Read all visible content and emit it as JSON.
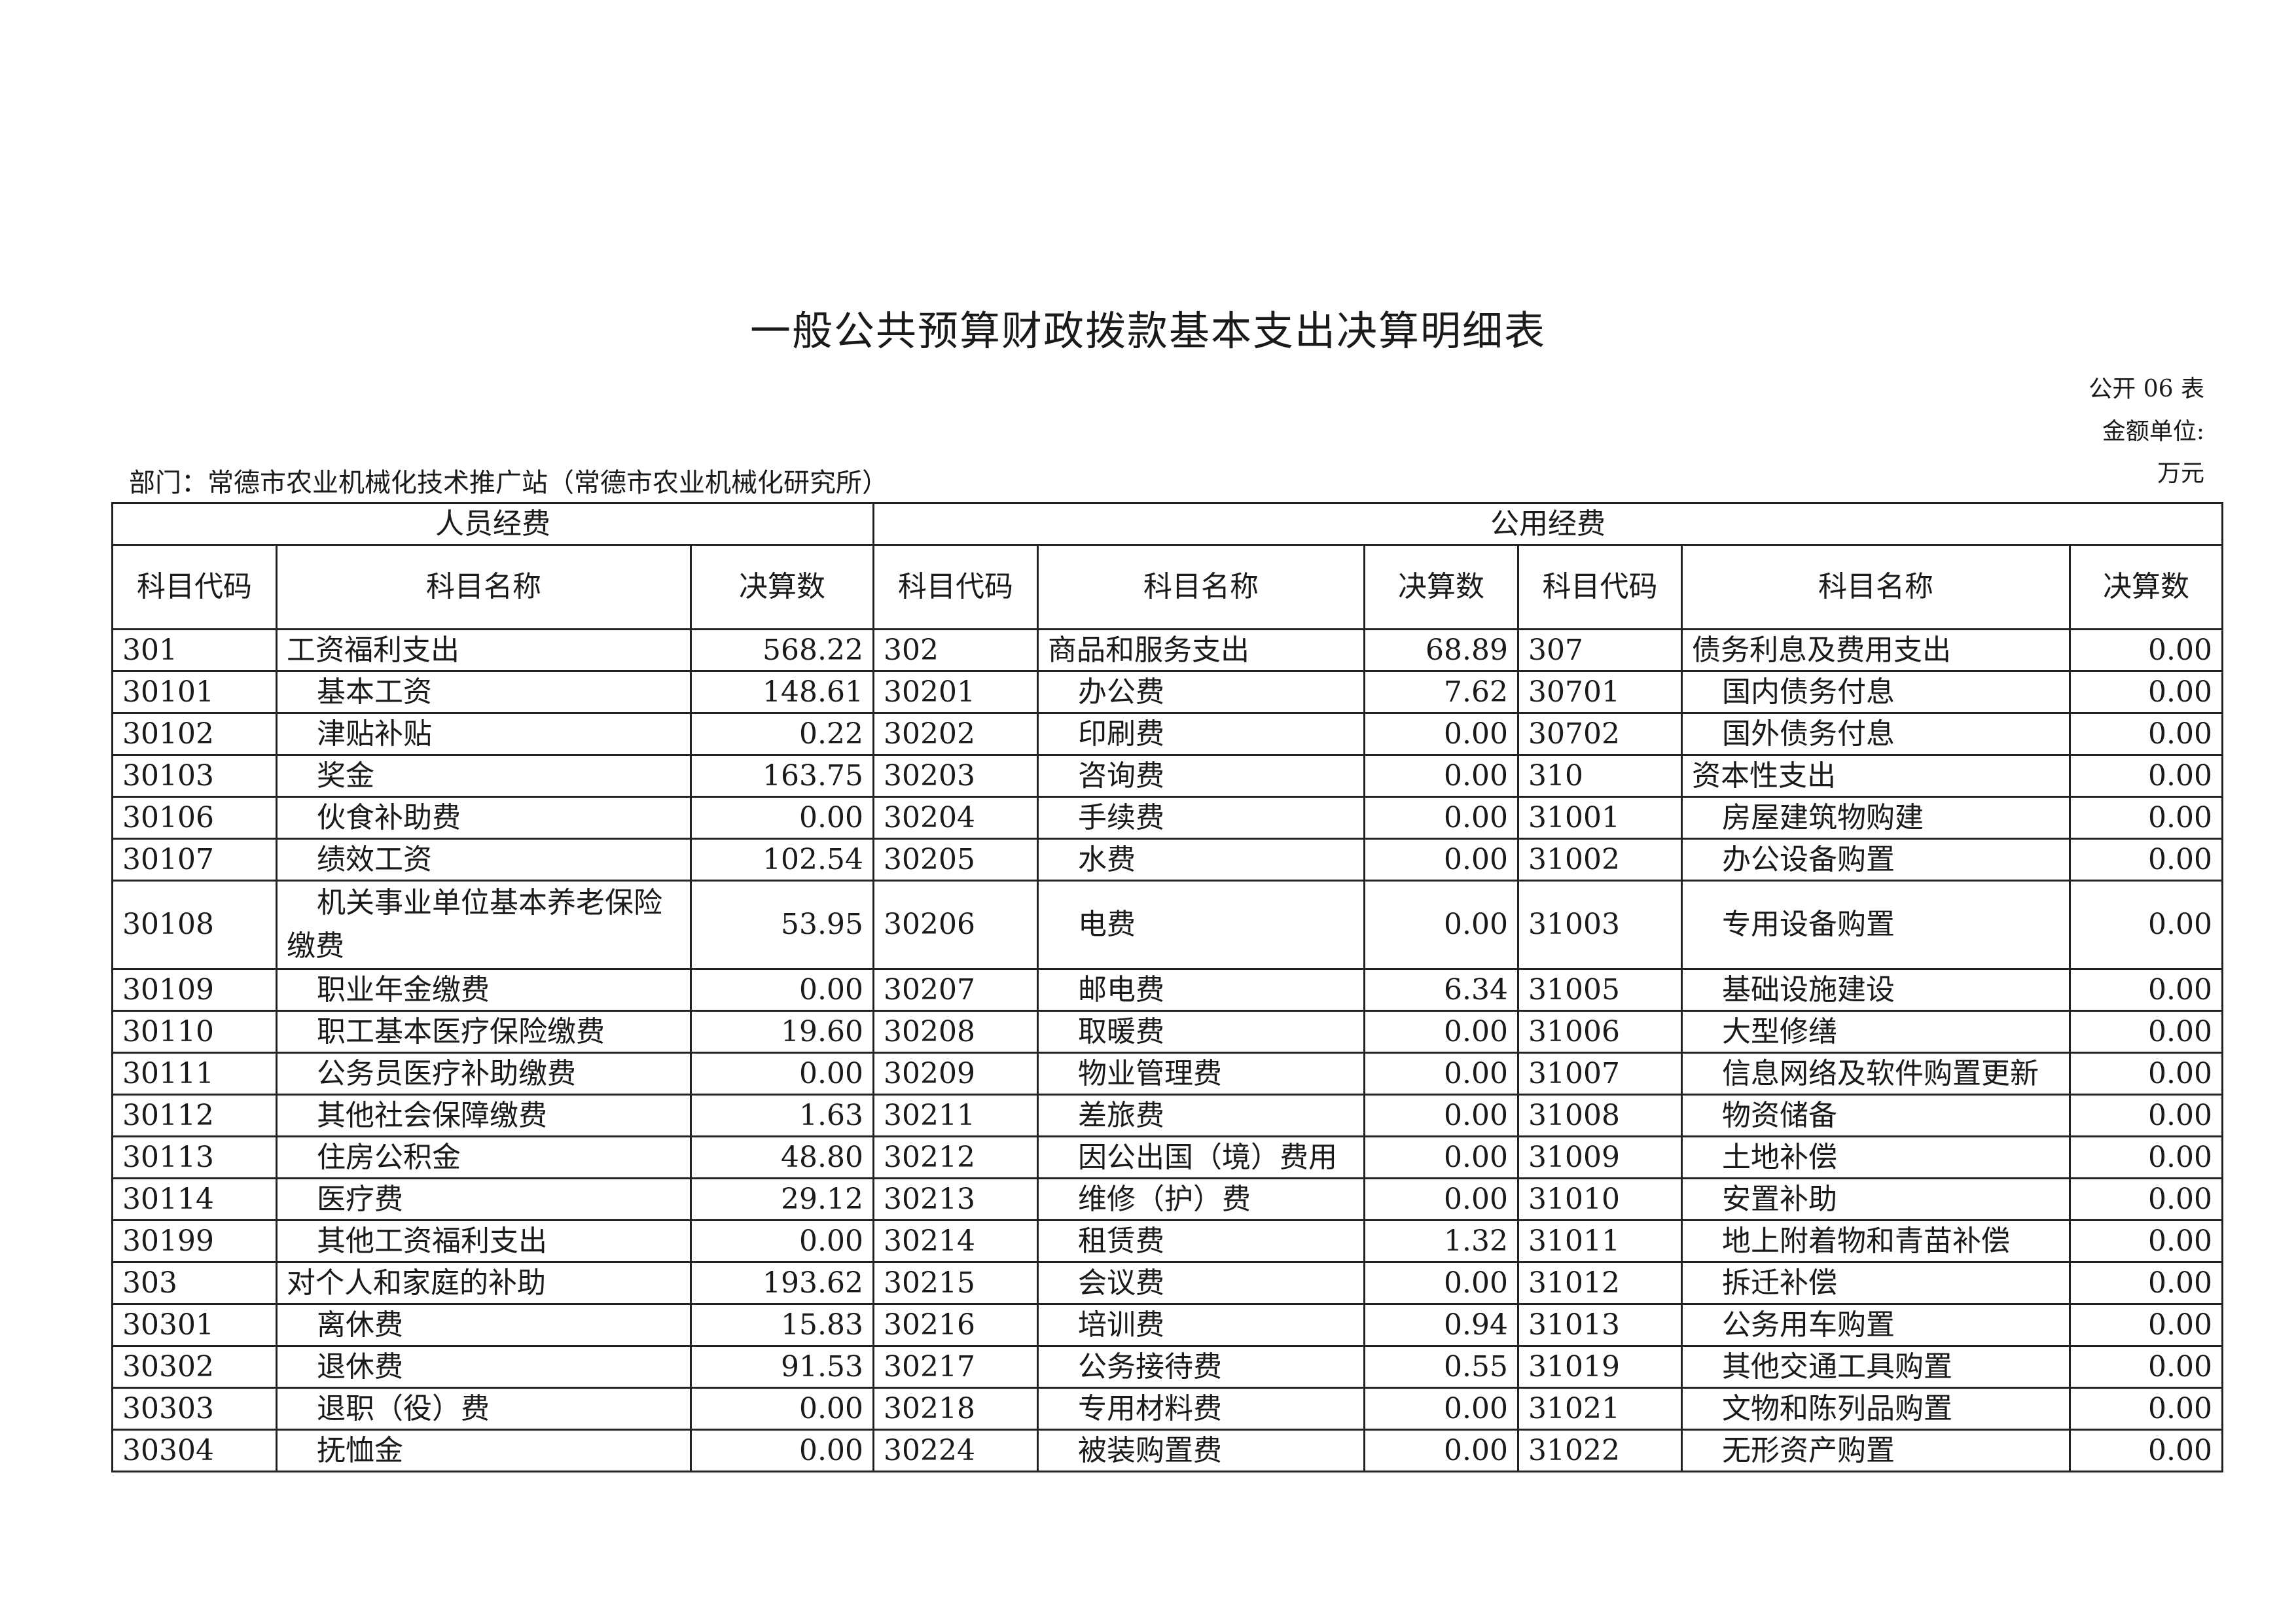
{
  "title": "一般公共预算财政拨款基本支出决算明细表",
  "table_no": "公开 06 表",
  "unit_label": "金额单位:",
  "unit": "万元",
  "department": "部门：常德市农业机械化技术推广站（常德市农业机械化研究所）",
  "groups": [
    "人员经费",
    "公用经费"
  ],
  "headers": [
    "科目代码",
    "科目名称",
    "决算数",
    "科目代码",
    "科目名称",
    "决算数",
    "科目代码",
    "科目名称",
    "决算数"
  ],
  "rows": [
    [
      [
        "301",
        "工资福利支出",
        "568.22"
      ],
      [
        "302",
        "商品和服务支出",
        "68.89"
      ],
      [
        "307",
        "债务利息及费用支出",
        "0.00"
      ]
    ],
    [
      [
        "30101",
        "基本工资",
        "148.61"
      ],
      [
        "30201",
        "办公费",
        "7.62"
      ],
      [
        "30701",
        "国内债务付息",
        "0.00"
      ]
    ],
    [
      [
        "30102",
        "津贴补贴",
        "0.22"
      ],
      [
        "30202",
        "印刷费",
        "0.00"
      ],
      [
        "30702",
        "国外债务付息",
        "0.00"
      ]
    ],
    [
      [
        "30103",
        "奖金",
        "163.75"
      ],
      [
        "30203",
        "咨询费",
        "0.00"
      ],
      [
        "310",
        "资本性支出",
        "0.00"
      ]
    ],
    [
      [
        "30106",
        "伙食补助费",
        "0.00"
      ],
      [
        "30204",
        "手续费",
        "0.00"
      ],
      [
        "31001",
        "房屋建筑物购建",
        "0.00"
      ]
    ],
    [
      [
        "30107",
        "绩效工资",
        "102.54"
      ],
      [
        "30205",
        "水费",
        "0.00"
      ],
      [
        "31002",
        "办公设备购置",
        "0.00"
      ]
    ],
    [
      [
        "30108",
        "机关事业单位基本养老保险缴费",
        "53.95"
      ],
      [
        "30206",
        "电费",
        "0.00"
      ],
      [
        "31003",
        "专用设备购置",
        "0.00"
      ]
    ],
    [
      [
        "30109",
        "职业年金缴费",
        "0.00"
      ],
      [
        "30207",
        "邮电费",
        "6.34"
      ],
      [
        "31005",
        "基础设施建设",
        "0.00"
      ]
    ],
    [
      [
        "30110",
        "职工基本医疗保险缴费",
        "19.60"
      ],
      [
        "30208",
        "取暖费",
        "0.00"
      ],
      [
        "31006",
        "大型修缮",
        "0.00"
      ]
    ],
    [
      [
        "30111",
        "公务员医疗补助缴费",
        "0.00"
      ],
      [
        "30209",
        "物业管理费",
        "0.00"
      ],
      [
        "31007",
        "信息网络及软件购置更新",
        "0.00"
      ]
    ],
    [
      [
        "30112",
        "其他社会保障缴费",
        "1.63"
      ],
      [
        "30211",
        "差旅费",
        "0.00"
      ],
      [
        "31008",
        "物资储备",
        "0.00"
      ]
    ],
    [
      [
        "30113",
        "住房公积金",
        "48.80"
      ],
      [
        "30212",
        "因公出国（境）费用",
        "0.00"
      ],
      [
        "31009",
        "土地补偿",
        "0.00"
      ]
    ],
    [
      [
        "30114",
        "医疗费",
        "29.12"
      ],
      [
        "30213",
        "维修（护）费",
        "0.00"
      ],
      [
        "31010",
        "安置补助",
        "0.00"
      ]
    ],
    [
      [
        "30199",
        "其他工资福利支出",
        "0.00"
      ],
      [
        "30214",
        "租赁费",
        "1.32"
      ],
      [
        "31011",
        "地上附着物和青苗补偿",
        "0.00"
      ]
    ],
    [
      [
        "303",
        "对个人和家庭的补助",
        "193.62"
      ],
      [
        "30215",
        "会议费",
        "0.00"
      ],
      [
        "31012",
        "拆迁补偿",
        "0.00"
      ]
    ],
    [
      [
        "30301",
        "离休费",
        "15.83"
      ],
      [
        "30216",
        "培训费",
        "0.94"
      ],
      [
        "31013",
        "公务用车购置",
        "0.00"
      ]
    ],
    [
      [
        "30302",
        "退休费",
        "91.53"
      ],
      [
        "30217",
        "公务接待费",
        "0.55"
      ],
      [
        "31019",
        "其他交通工具购置",
        "0.00"
      ]
    ],
    [
      [
        "30303",
        "退职（役）费",
        "0.00"
      ],
      [
        "30218",
        "专用材料费",
        "0.00"
      ],
      [
        "31021",
        "文物和陈列品购置",
        "0.00"
      ]
    ],
    [
      [
        "30304",
        "抚恤金",
        "0.00"
      ],
      [
        "30224",
        "被装购置费",
        "0.00"
      ],
      [
        "31022",
        "无形资产购置",
        "0.00"
      ]
    ]
  ]
}
